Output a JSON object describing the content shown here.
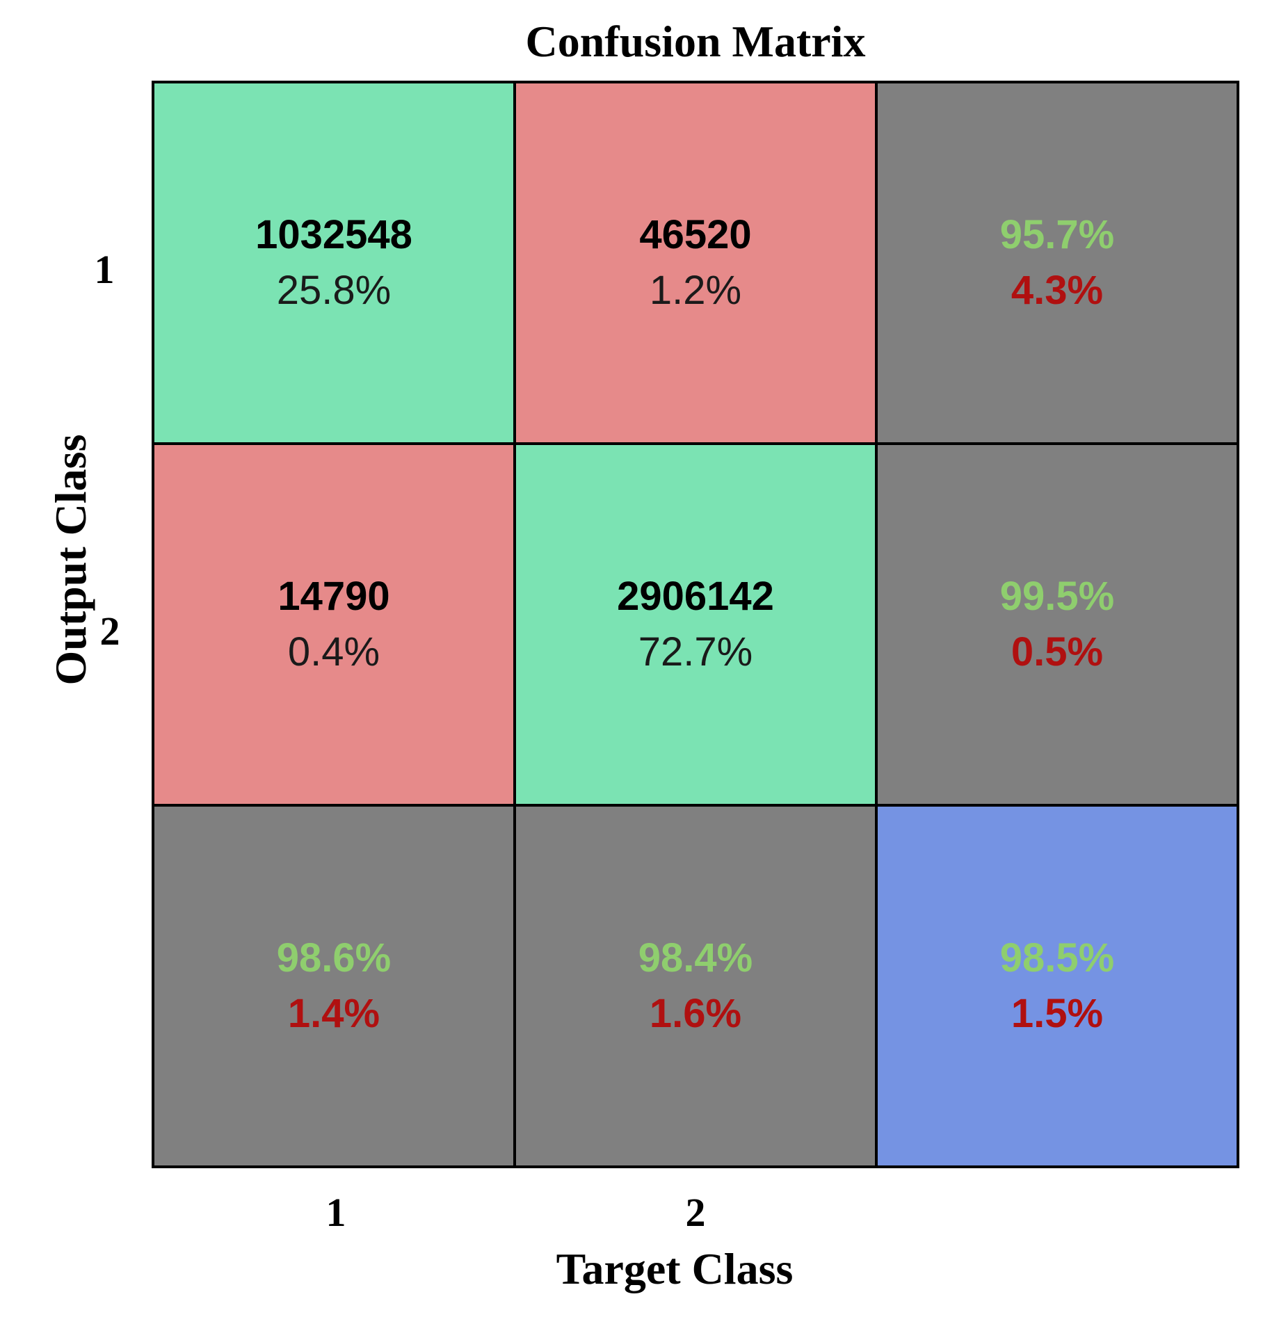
{
  "chart_data": {
    "type": "table",
    "title": "Confusion Matrix",
    "xlabel": "Target Class",
    "ylabel": "Output Class",
    "row_ticks": [
      "1",
      "2"
    ],
    "col_ticks": [
      "1",
      "2"
    ],
    "colors": {
      "correct": "#7be3b3",
      "incorrect": "#e68a8a",
      "summary": "#808080",
      "overall": "#7593e3",
      "good_text": "#8fce6e",
      "bad_text": "#b01010"
    },
    "cells": [
      [
        {
          "kind": "correct",
          "count": "1032548",
          "pct": "25.8%"
        },
        {
          "kind": "incorrect",
          "count": "46520",
          "pct": "1.2%"
        },
        {
          "kind": "summary",
          "good": "95.7%",
          "bad": "4.3%"
        }
      ],
      [
        {
          "kind": "incorrect",
          "count": "14790",
          "pct": "0.4%"
        },
        {
          "kind": "correct",
          "count": "2906142",
          "pct": "72.7%"
        },
        {
          "kind": "summary",
          "good": "99.5%",
          "bad": "0.5%"
        }
      ],
      [
        {
          "kind": "summary",
          "good": "98.6%",
          "bad": "1.4%"
        },
        {
          "kind": "summary",
          "good": "98.4%",
          "bad": "1.6%"
        },
        {
          "kind": "overall",
          "good": "98.5%",
          "bad": "1.5%"
        }
      ]
    ]
  }
}
